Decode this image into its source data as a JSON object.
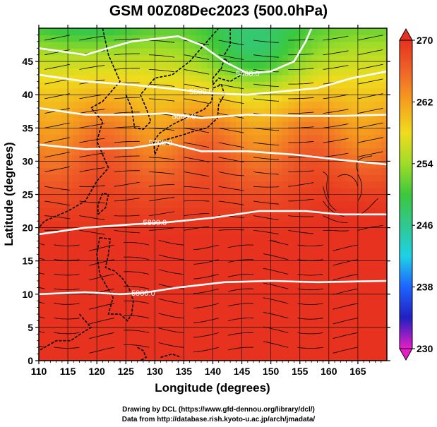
{
  "title": "GSM 00Z08Dec2023 (500.0hPa)",
  "chart_data": {
    "type": "heatmap",
    "title": "GSM 00Z08Dec2023 (500.0hPa)",
    "xlabel": "Longitude (degrees)",
    "ylabel": "Latitude  (degrees)",
    "xlim": [
      110,
      170
    ],
    "ylim": [
      0,
      50
    ],
    "x_ticks": [
      "110",
      "115",
      "120",
      "125",
      "130",
      "135",
      "140",
      "145",
      "150",
      "155",
      "160",
      "165"
    ],
    "y_ticks": [
      "0",
      "5",
      "10",
      "15",
      "20",
      "25",
      "30",
      "35",
      "40",
      "45"
    ],
    "grid": true,
    "colorbar": {
      "min": 230,
      "max": 270,
      "labels": [
        "270",
        "262",
        "254",
        "246",
        "238",
        "230"
      ],
      "colors": [
        "#e81ec8",
        "#2020c0",
        "#1e64ff",
        "#1ed2e6",
        "#30c890",
        "#3cc83c",
        "#a0dc28",
        "#f0dc1e",
        "#f5a01e",
        "#f06428",
        "#e6321e"
      ]
    },
    "contours": [
      {
        "label": "5400.0",
        "lon": 146,
        "lat": 43.2
      },
      {
        "label": "5500.0",
        "lon": 138,
        "lat": 40.5
      },
      {
        "label": "5600.0",
        "lon": 135,
        "lat": 36.8
      },
      {
        "label": "5700.0",
        "lon": 131,
        "lat": 32.8
      },
      {
        "label": "5800.0",
        "lon": 130,
        "lat": 20.8
      },
      {
        "label": "5900.0",
        "lon": 128,
        "lat": 10.2
      }
    ]
  },
  "credits": {
    "line1": "Drawing by DCL (https://www.gfd-dennou.org/library/dcl/)",
    "line2": "Data from http://database.rish.kyoto-u.ac.jp/arch/jmadata/"
  }
}
